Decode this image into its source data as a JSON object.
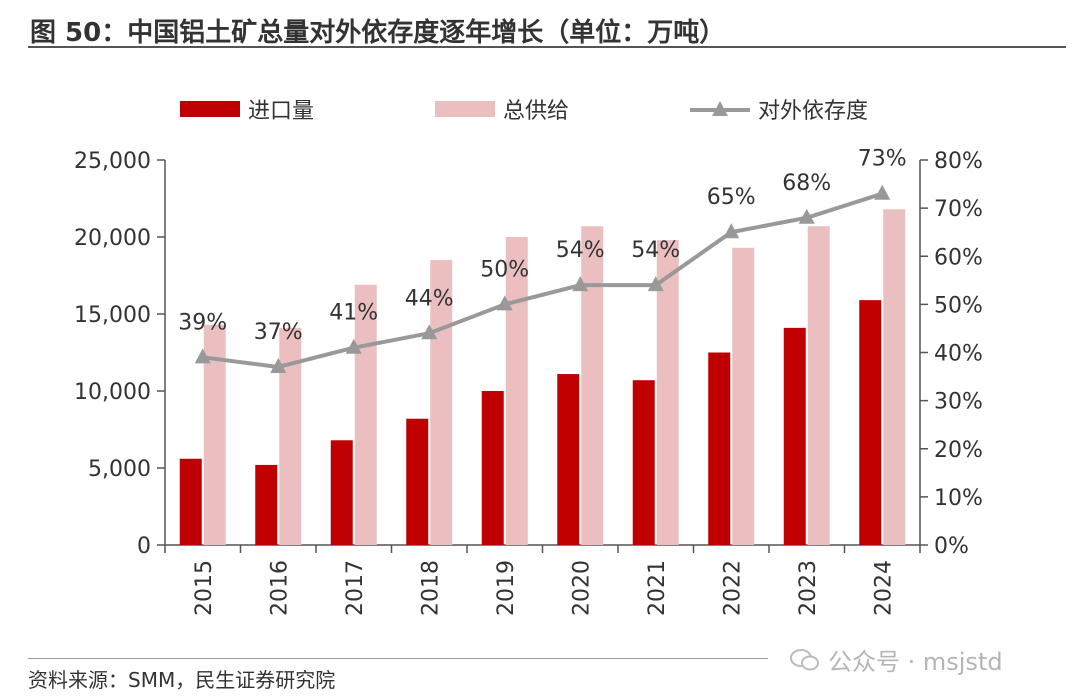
{
  "title": "图 50：中国铝土矿总量对外依存度逐年增长（单位：万吨）",
  "source": "资料来源：SMM，民生证券研究院",
  "watermark": "公众号 · msjstd",
  "colors": {
    "import": "#c00000",
    "supply": "#ebbfc0",
    "line": "#999999",
    "axis": "#555555"
  },
  "chart_data": {
    "type": "bar",
    "categories": [
      "2015",
      "2016",
      "2017",
      "2018",
      "2019",
      "2020",
      "2021",
      "2022",
      "2023",
      "2024"
    ],
    "series": [
      {
        "name": "进口量",
        "type": "bar",
        "axis": "left",
        "values": [
          5600,
          5200,
          6800,
          8200,
          10000,
          11100,
          10700,
          12500,
          14100,
          15900
        ]
      },
      {
        "name": "总供给",
        "type": "bar",
        "axis": "left",
        "values": [
          14300,
          14100,
          16900,
          18500,
          20000,
          20700,
          19800,
          19300,
          20700,
          21800
        ]
      },
      {
        "name": "对外依存度",
        "type": "line",
        "axis": "right",
        "marker": "triangle",
        "values": [
          39,
          37,
          41,
          44,
          50,
          54,
          54,
          65,
          68,
          73
        ],
        "labels": [
          "39%",
          "37%",
          "41%",
          "44%",
          "50%",
          "54%",
          "54%",
          "65%",
          "68%",
          "73%"
        ]
      }
    ],
    "left_axis": {
      "min": 0,
      "max": 25000,
      "ticks": [
        "0",
        "5,000",
        "10,000",
        "15,000",
        "20,000",
        "25,000"
      ]
    },
    "right_axis": {
      "min": 0,
      "max": 80,
      "ticks": [
        "0%",
        "10%",
        "20%",
        "30%",
        "40%",
        "50%",
        "60%",
        "70%",
        "80%"
      ]
    },
    "legend_position": "top"
  }
}
